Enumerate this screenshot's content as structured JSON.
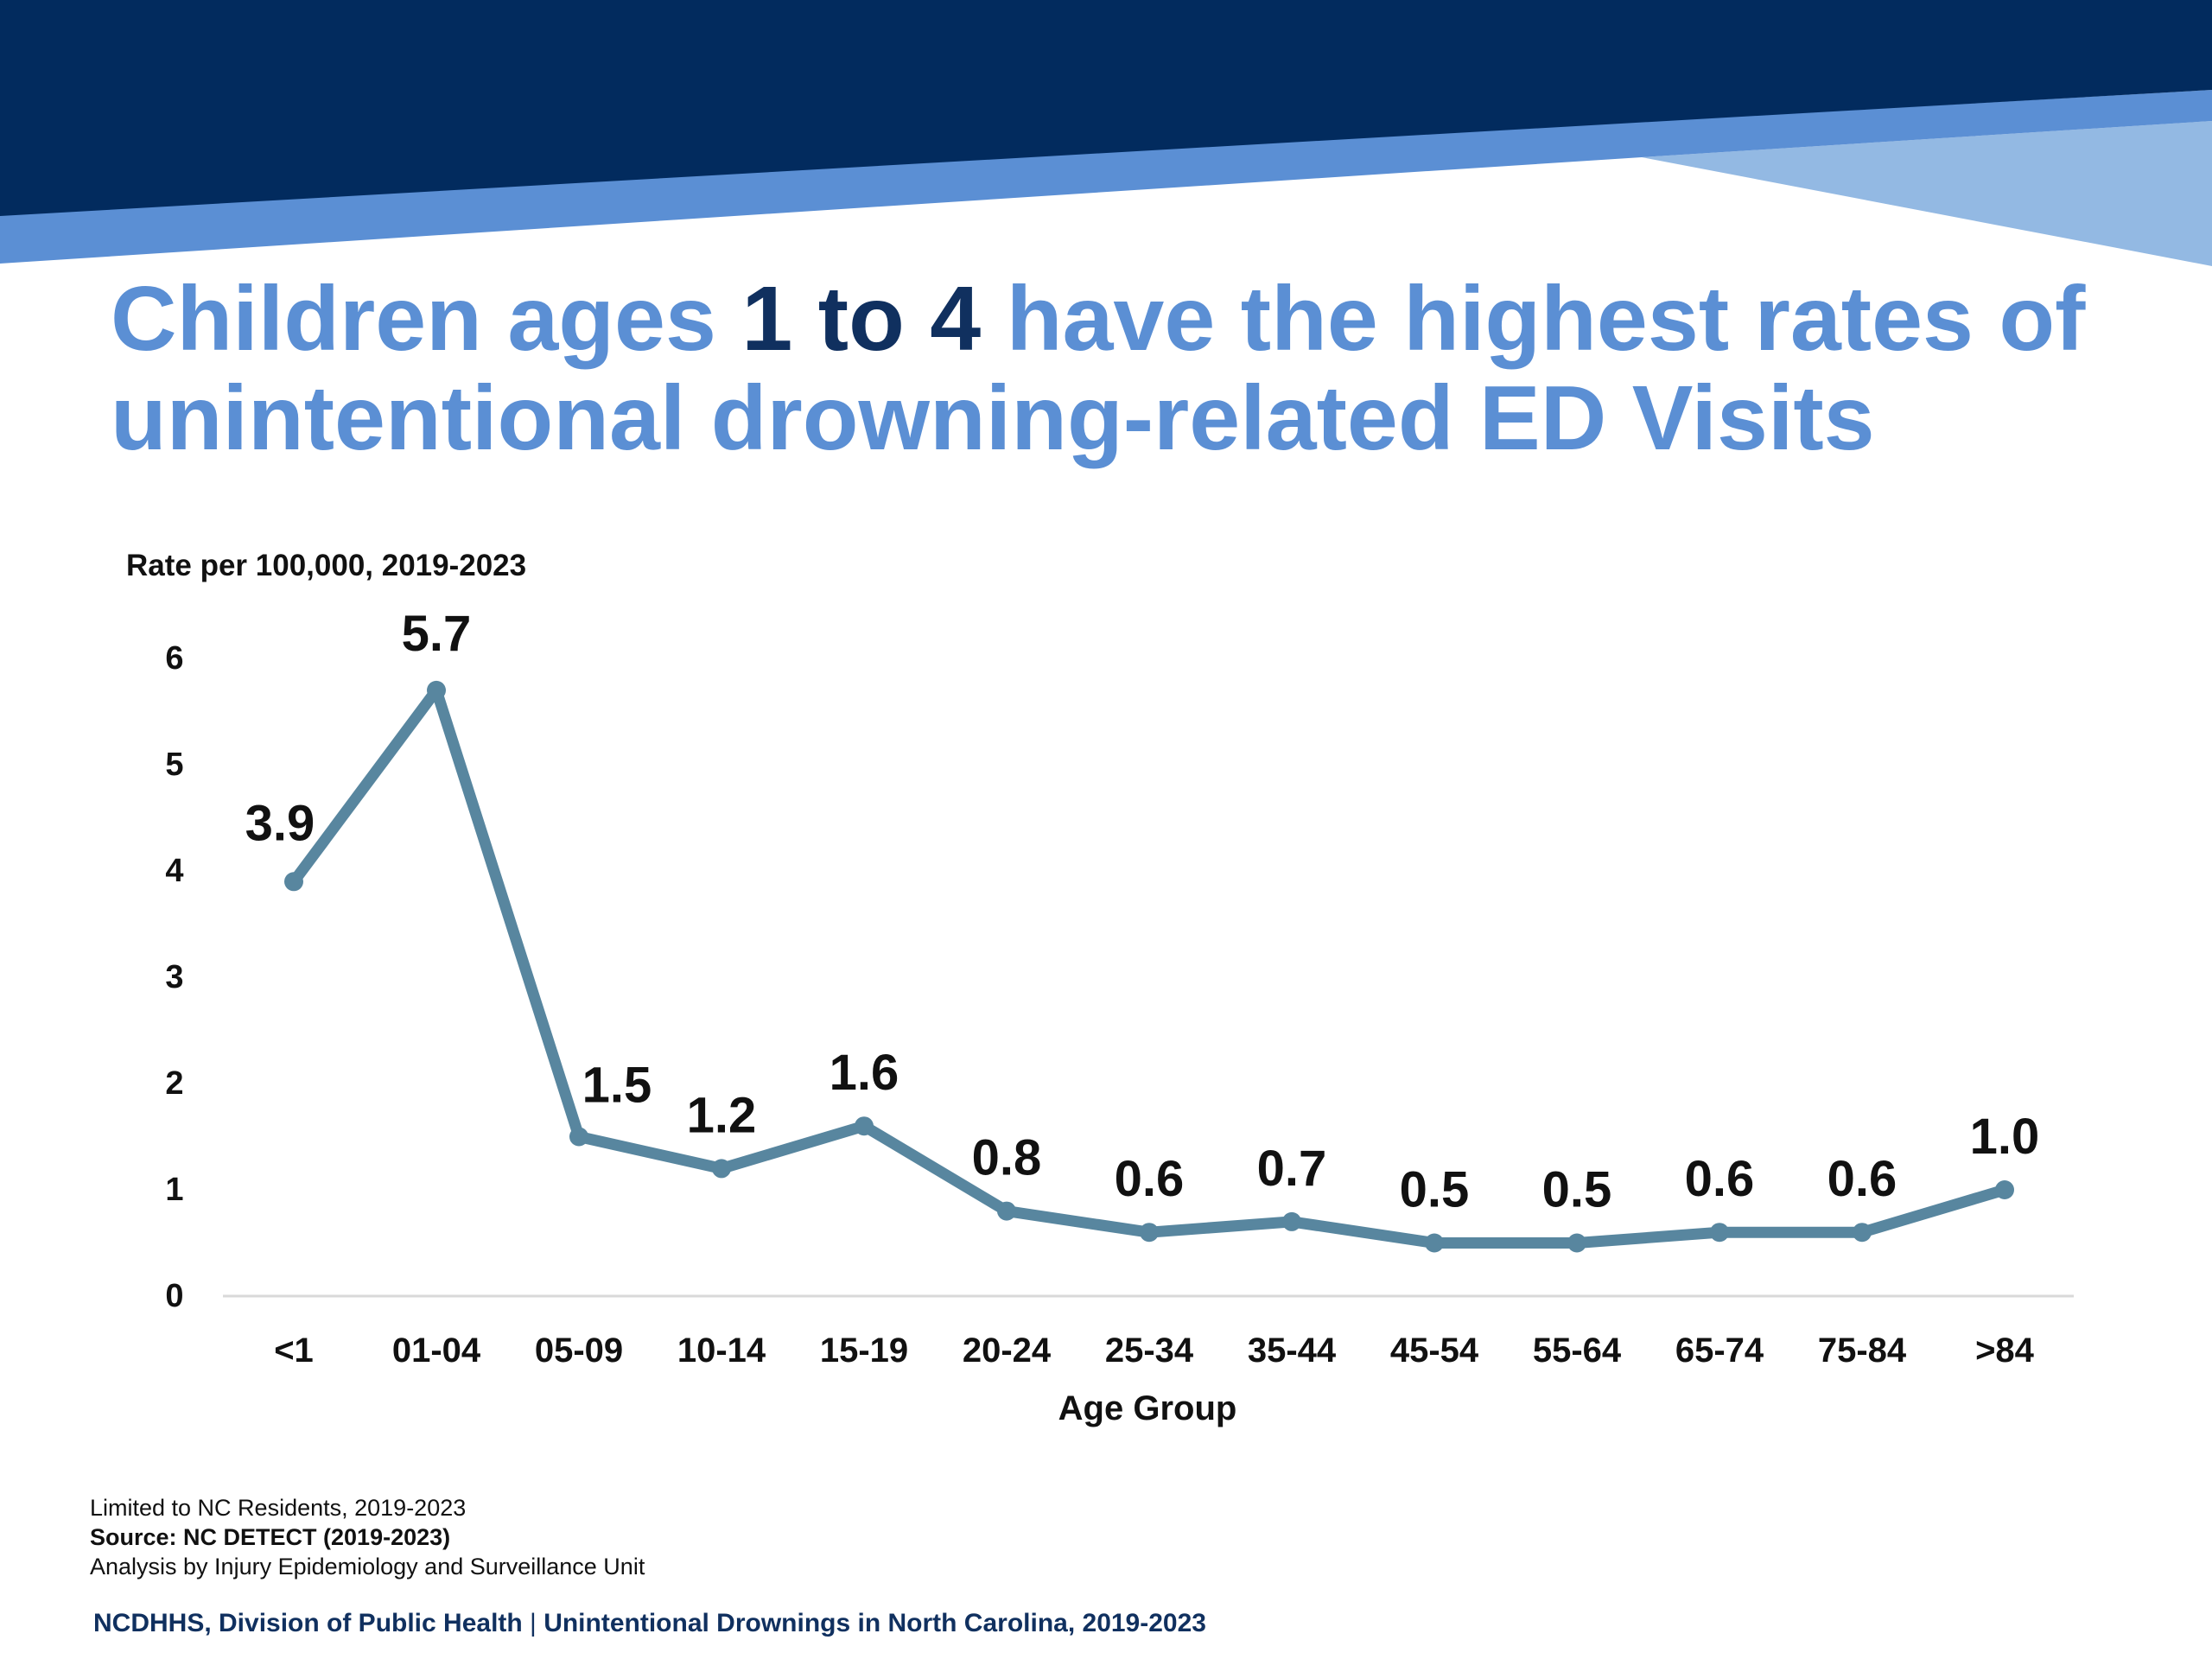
{
  "colors": {
    "banner_dark": "#022b5e",
    "banner_mid": "#5b8fd4",
    "banner_light": "#93b9e3",
    "title_blue": "#5b8fd4",
    "title_highlight": "#10305f",
    "line": "#58869f",
    "footer_text": "#10305f"
  },
  "title": {
    "part1": "Children ages ",
    "highlight": "1 to 4",
    "part2": " have the highest rates of unintentional drowning-related ED Visits"
  },
  "chart_data": {
    "type": "line",
    "ylabel": "Rate per 100,000, 2019-2023",
    "xlabel": "Age Group",
    "ylim": [
      0,
      6
    ],
    "yticks": [
      0,
      1,
      2,
      3,
      4,
      5,
      6
    ],
    "categories": [
      "<1",
      "01-04",
      "05-09",
      "10-14",
      "15-19",
      "20-24",
      "25-34",
      "35-44",
      "45-54",
      "55-64",
      "65-74",
      "75-84",
      ">84"
    ],
    "values": [
      3.9,
      5.7,
      1.5,
      1.2,
      1.6,
      0.8,
      0.6,
      0.7,
      0.5,
      0.5,
      0.6,
      0.6,
      1.0
    ],
    "data_labels": [
      "3.9",
      "5.7",
      "1.5",
      "1.2",
      "1.6",
      "0.8",
      "0.6",
      "0.7",
      "0.5",
      "0.5",
      "0.6",
      "0.6",
      "1.0"
    ],
    "grid": false,
    "legend": "none"
  },
  "notes": {
    "line1": "Limited to NC Residents, 2019-2023",
    "line2": "Source: NC DETECT (2019-2023)",
    "line3": "Analysis by Injury Epidemiology and Surveillance Unit"
  },
  "footer": {
    "left": "NCDHHS, Division of Public Health",
    "separator": " | ",
    "right": "Unintentional Drownings in North Carolina, 2019-2023"
  }
}
